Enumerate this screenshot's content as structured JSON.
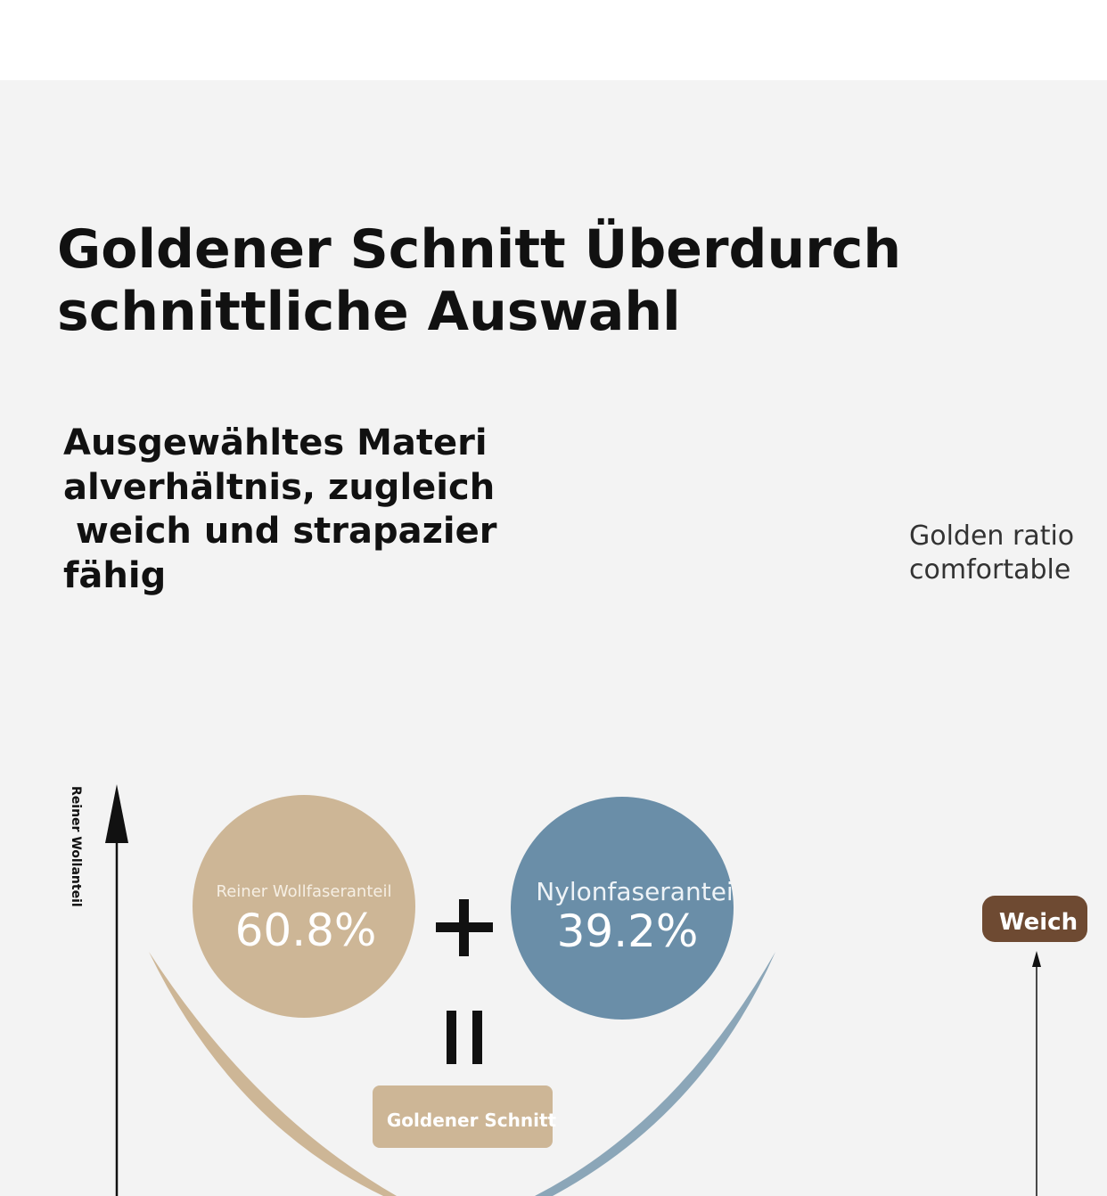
{
  "header": {
    "title_lines": [
      "Goldener Schnitt Überdurch",
      "schnittliche Auswahl"
    ]
  },
  "intro": {
    "lines": [
      "Ausgewähltes Materi",
      "alverhältnis, zugleich",
      " weich und strapazier",
      "fähig"
    ]
  },
  "tagline": {
    "lines": [
      "Golden ratio",
      "comfortable"
    ]
  },
  "axis_label": "Reiner Wollanteil",
  "components": [
    {
      "label": "Reiner Wollfaseranteil",
      "share": "60.8%"
    },
    {
      "label": "Nylonfaserantei",
      "share": "39.2%"
    }
  ],
  "result": "Goldener Schnitt",
  "badge": "Weich"
}
